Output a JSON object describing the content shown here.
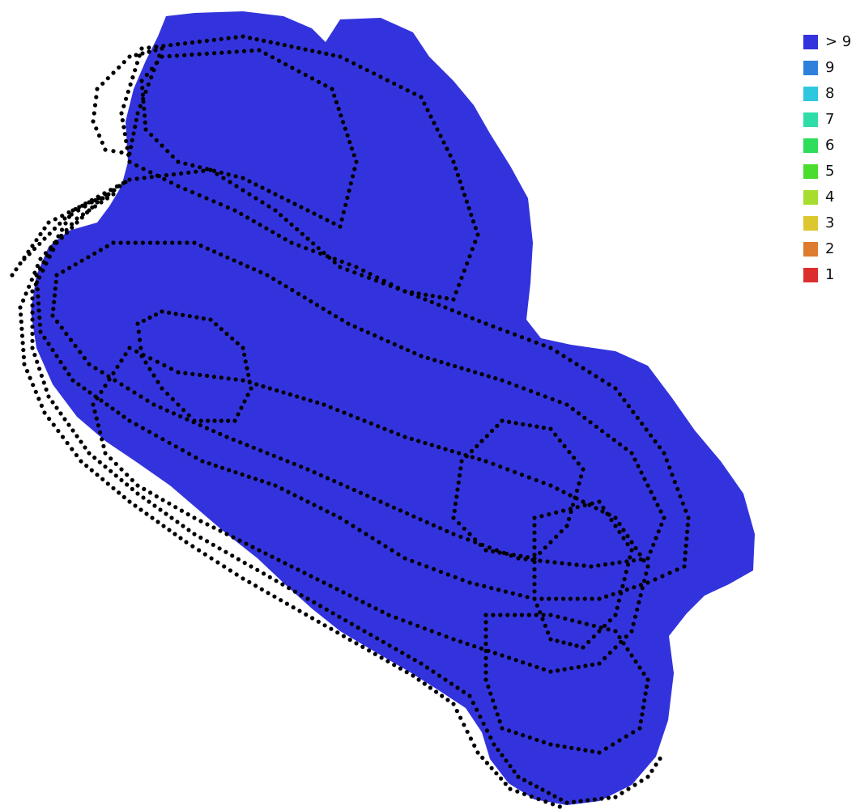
{
  "legend": {
    "items": [
      {
        "label": "> 9",
        "color": "#3333dd"
      },
      {
        "label": "9",
        "color": "#2f80dd"
      },
      {
        "label": "8",
        "color": "#2ec7dd"
      },
      {
        "label": "7",
        "color": "#2edda8"
      },
      {
        "label": "6",
        "color": "#2edd5a"
      },
      {
        "label": "5",
        "color": "#4bdd2e"
      },
      {
        "label": "4",
        "color": "#a6dd2e"
      },
      {
        "label": "3",
        "color": "#ddc72e"
      },
      {
        "label": "2",
        "color": "#dd7b2e"
      },
      {
        "label": "1",
        "color": "#dd2e2e"
      }
    ]
  },
  "map": {
    "coverage_color": "#3333dd",
    "point_color": "#000000"
  }
}
